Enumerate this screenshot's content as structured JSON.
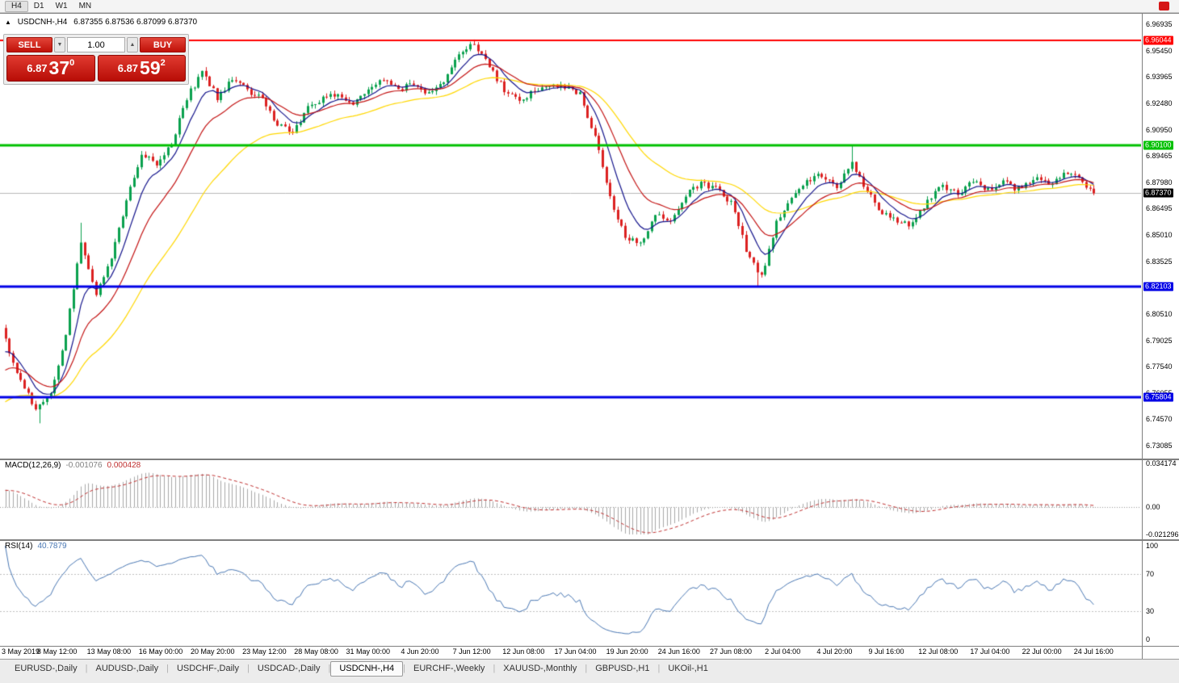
{
  "toolbar": {
    "timeframes": [
      {
        "label": "H4",
        "active": true
      },
      {
        "label": "D1",
        "active": false
      },
      {
        "label": "W1",
        "active": false
      },
      {
        "label": "MN",
        "active": false
      }
    ]
  },
  "chart": {
    "header": {
      "collapse_icon": "▲",
      "symbol": "USDCNH-,H4",
      "ohlc": "6.87355 6.87536 6.87099 6.87370"
    }
  },
  "trade_panel": {
    "sell_label": "SELL",
    "buy_label": "BUY",
    "volume": "1.00",
    "dec": "▼",
    "inc": "▲",
    "sell_price": {
      "base": "6.87",
      "pips": "37",
      "point": "0"
    },
    "buy_price": {
      "base": "6.87",
      "pips": "59",
      "point": "2"
    }
  },
  "macd": {
    "name": "MACD(12,26,9)",
    "value1": "-0.001076",
    "value2": "0.000428",
    "max": 0.034174,
    "min": -0.021296,
    "axis": [
      {
        "label": "0.034174",
        "value": 0.034174
      },
      {
        "label": "0.00",
        "value": 0
      },
      {
        "label": "-0.021296",
        "value": -0.021296
      }
    ]
  },
  "rsi": {
    "name": "RSI(14)",
    "value": "40.7879",
    "levels": [
      70,
      30
    ],
    "axis": [
      {
        "label": "100",
        "value": 100
      },
      {
        "label": "70",
        "value": 70
      },
      {
        "label": "30",
        "value": 30
      },
      {
        "label": "0",
        "value": 0
      }
    ]
  },
  "tabs": {
    "active_index": 4,
    "items": [
      "EURUSD-,Daily",
      "AUDUSD-,Daily",
      "USDCHF-,Daily",
      "USDCAD-,Daily",
      "USDCNH-,H4",
      "EURCHF-,Weekly",
      "XAUUSD-,Monthly",
      "GBPUSD-,H1",
      "UKOil-,H1"
    ]
  },
  "chart_data": {
    "type": "candlestick",
    "symbol": "USDCNH-",
    "timeframe": "H4",
    "ohlc_display": {
      "open": "6.87355",
      "high": "6.87536",
      "low": "6.87099",
      "close": "6.87370"
    },
    "price_max": 6.96935,
    "price_min": 6.73085,
    "price_axis_labels": [
      "6.96935",
      "6.95450",
      "6.93965",
      "6.92480",
      "6.90950",
      "6.89465",
      "6.87980",
      "6.86495",
      "6.85010",
      "6.83525",
      "6.82040",
      "6.80510",
      "6.79025",
      "6.77540",
      "6.76055",
      "6.74570",
      "6.73085"
    ],
    "time_labels": [
      "3 May 2019",
      "8 May 12:00",
      "13 May 08:00",
      "16 May 00:00",
      "20 May 20:00",
      "23 May 12:00",
      "28 May 08:00",
      "31 May 00:00",
      "4 Jun 20:00",
      "7 Jun 12:00",
      "12 Jun 08:00",
      "17 Jun 04:00",
      "19 Jun 20:00",
      "24 Jun 16:00",
      "27 Jun 08:00",
      "2 Jul 04:00",
      "4 Jul 20:00",
      "9 Jul 16:00",
      "12 Jul 08:00",
      "17 Jul 04:00",
      "22 Jul 00:00",
      "24 Jul 16:00"
    ],
    "hlines": [
      {
        "price": 6.96044,
        "label": "6.96044",
        "color": "#ff0000",
        "width": 2
      },
      {
        "price": 6.901,
        "label": "6.90100",
        "color": "#00c000",
        "width": 3
      },
      {
        "price": 6.82103,
        "label": "6.82103",
        "color": "#0000e6",
        "width": 3
      },
      {
        "price": 6.75804,
        "label": "6.75804",
        "color": "#0000e6",
        "width": 3
      }
    ],
    "current_price": {
      "value": 6.8737,
      "label": "6.87370"
    },
    "waypoint_step": 4,
    "close_waypoints": [
      6.79,
      6.768,
      6.752,
      6.76,
      6.795,
      6.845,
      6.815,
      6.838,
      6.87,
      6.896,
      6.89,
      6.902,
      6.928,
      6.942,
      6.928,
      6.938,
      6.932,
      6.928,
      6.912,
      6.908,
      6.922,
      6.928,
      6.93,
      6.925,
      6.932,
      6.938,
      6.932,
      6.936,
      6.93,
      6.938,
      6.952,
      6.958,
      6.945,
      6.932,
      6.926,
      6.932,
      6.935,
      6.934,
      6.93,
      6.905,
      6.872,
      6.848,
      6.845,
      6.862,
      6.858,
      6.872,
      6.88,
      6.876,
      6.868,
      6.842,
      6.826,
      6.858,
      6.872,
      6.88,
      6.884,
      6.878,
      6.89,
      6.875,
      6.862,
      6.858,
      6.856,
      6.87,
      6.878,
      6.874,
      6.88,
      6.876,
      6.88,
      6.876,
      6.882,
      6.879,
      6.884,
      6.882,
      6.874
    ],
    "last_close": 6.8737,
    "spikes": [
      {
        "index": 9,
        "low": 6.7435
      },
      {
        "index": 20,
        "high": 6.857
      },
      {
        "index": 124,
        "high": 6.9607
      },
      {
        "index": 199,
        "low": 6.8212
      },
      {
        "index": 224,
        "high": 6.9005
      }
    ],
    "candle_up_color": "#0aa14e",
    "candle_down_color": "#dc2121",
    "moving_averages": [
      {
        "type": "ema",
        "period": 40,
        "color": "#ffd800"
      },
      {
        "type": "ema",
        "period": 8,
        "color": "#14148c"
      },
      {
        "type": "ema",
        "period": 18,
        "color": "#c41414"
      }
    ],
    "macd": {
      "fast": 12,
      "slow": 26,
      "signal": 9,
      "hist_color": "#a8a8a8",
      "signal_color": "#c03030"
    },
    "rsi": {
      "period": 14,
      "color": "#4a78b4"
    }
  }
}
